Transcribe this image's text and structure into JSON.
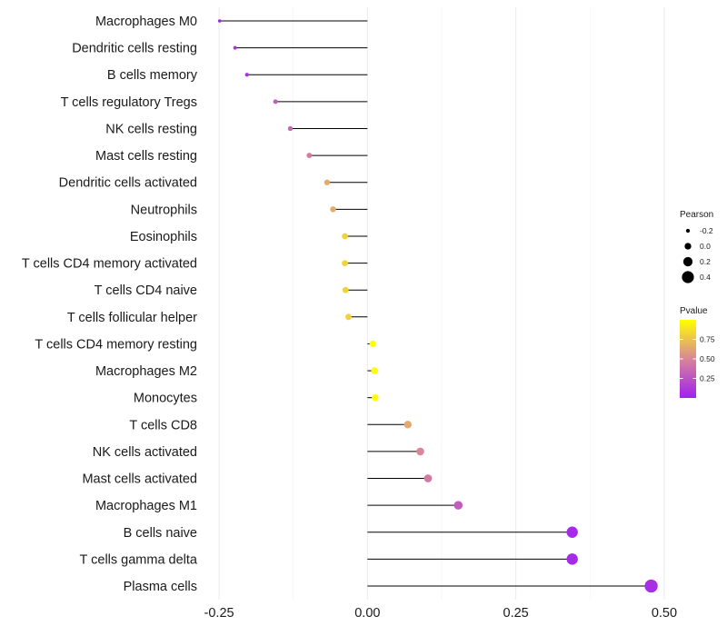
{
  "chart_data": {
    "type": "lollipop",
    "categories": [
      "Macrophages M0",
      "Dendritic cells resting",
      "B cells memory",
      "T cells regulatory  Tregs",
      "NK cells resting",
      "Mast cells resting",
      "Dendritic cells activated",
      "Neutrophils",
      "Eosinophils",
      "T cells CD4 memory activated",
      "T cells CD4 naive",
      "T cells follicular helper",
      "T cells CD4 memory resting",
      "Macrophages M2",
      "Monocytes",
      "T cells CD8",
      "NK cells activated",
      "Mast cells activated",
      "Macrophages M1",
      "B cells naive",
      "T cells gamma delta",
      "Plasma cells"
    ],
    "values": [
      -0.249,
      -0.223,
      -0.203,
      -0.155,
      -0.13,
      -0.098,
      -0.068,
      -0.058,
      -0.038,
      -0.038,
      -0.037,
      -0.032,
      0.009,
      0.012,
      0.013,
      0.068,
      0.089,
      0.102,
      0.153,
      0.345,
      0.345,
      0.478
    ],
    "pvalues": [
      0.02,
      0.1,
      0.08,
      0.3,
      0.35,
      0.45,
      0.65,
      0.65,
      0.82,
      0.82,
      0.82,
      0.82,
      1.0,
      1.0,
      1.0,
      0.65,
      0.5,
      0.45,
      0.3,
      0.05,
      0.05,
      0.08
    ],
    "xlim": [
      -0.27,
      0.52
    ],
    "x_ticks": [
      -0.25,
      0.0,
      0.25,
      0.5
    ],
    "x_tick_labels": [
      "-0.25",
      "0.00",
      "0.25",
      "0.50"
    ],
    "grid": true,
    "size_legend": {
      "title": "Pearson",
      "levels": [
        -0.2,
        0.0,
        0.2,
        0.4
      ],
      "labels": [
        "-0.2",
        "0.0",
        "0.2",
        "0.4"
      ]
    },
    "color_legend": {
      "title": "Pvalue",
      "ticks": [
        0.25,
        0.5,
        0.75
      ],
      "tick_labels": [
        "0.25",
        "0.50",
        "0.75"
      ],
      "range": [
        0.0,
        1.0
      ],
      "low_color": "#a020f0",
      "mid_color": "#d8869a",
      "high_color": "#ffff00"
    },
    "line_color": "#000000",
    "xlabel": "",
    "ylabel": ""
  }
}
